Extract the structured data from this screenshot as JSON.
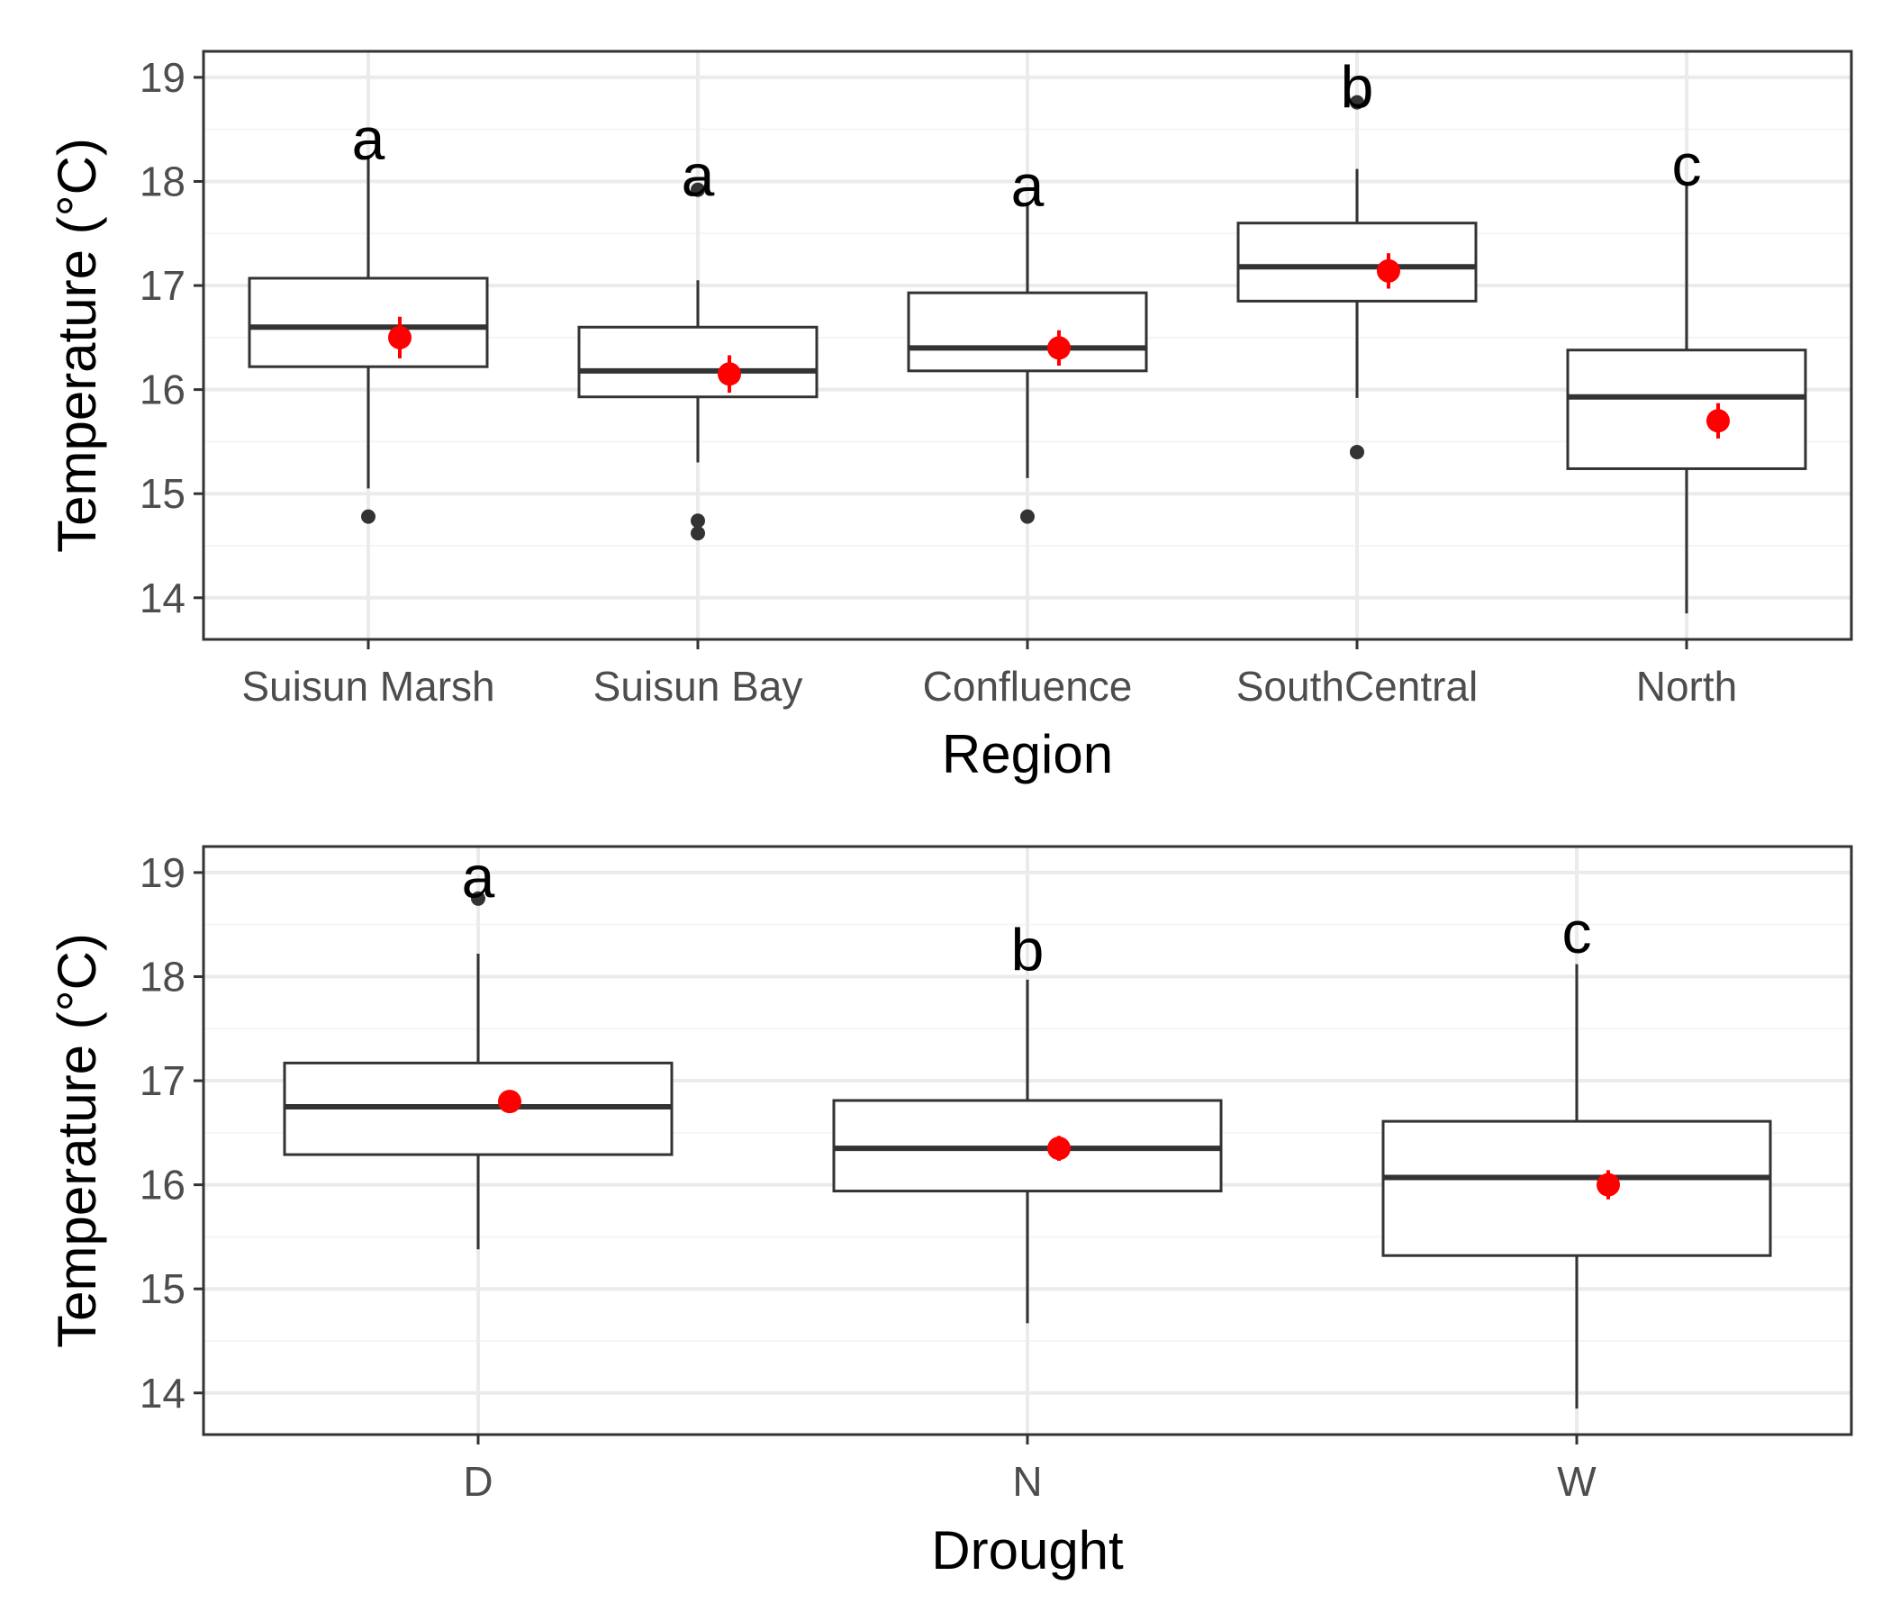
{
  "colors": {
    "background": "#ffffff",
    "panel_border": "#333333",
    "grid_major": "#ebebeb",
    "grid_minor": "#f5f5f5",
    "box": "#333333",
    "mean_point": "#ff0000",
    "outlier": "#333333",
    "tick_text": "#4d4d4d",
    "title_text": "#000000"
  },
  "chart_data": [
    {
      "type": "box",
      "xlabel": "Region",
      "ylabel": "Temperature (°C)",
      "ylim": [
        13.6,
        19.25
      ],
      "yticks": [
        14,
        15,
        16,
        17,
        18,
        19
      ],
      "grid": true,
      "categories": [
        "Suisun Marsh",
        "Suisun Bay",
        "Confluence",
        "SouthCentral",
        "North"
      ],
      "boxes": [
        {
          "whisker_low": 15.05,
          "q1": 16.22,
          "median": 16.6,
          "q3": 17.07,
          "whisker_high": 18.25,
          "outliers": [
            14.78
          ],
          "mean": 16.5,
          "mean_err": 0.2,
          "letter": "a",
          "letter_y": 18.4
        },
        {
          "whisker_low": 15.3,
          "q1": 15.93,
          "median": 16.18,
          "q3": 16.6,
          "whisker_high": 17.05,
          "outliers": [
            17.92,
            14.74,
            14.62
          ],
          "mean": 16.15,
          "mean_err": 0.18,
          "letter": "a",
          "letter_y": 18.05
        },
        {
          "whisker_low": 15.15,
          "q1": 16.18,
          "median": 16.4,
          "q3": 16.93,
          "whisker_high": 17.8,
          "outliers": [
            14.78
          ],
          "mean": 16.4,
          "mean_err": 0.17,
          "letter": "a",
          "letter_y": 17.95
        },
        {
          "whisker_low": 15.92,
          "q1": 16.85,
          "median": 17.18,
          "q3": 17.6,
          "whisker_high": 18.12,
          "outliers": [
            18.76,
            15.4
          ],
          "mean": 17.14,
          "mean_err": 0.17,
          "letter": "b",
          "letter_y": 18.9
        },
        {
          "whisker_low": 13.85,
          "q1": 15.24,
          "median": 15.93,
          "q3": 16.38,
          "whisker_high": 17.98,
          "outliers": [],
          "mean": 15.7,
          "mean_err": 0.17,
          "letter": "c",
          "letter_y": 18.15
        }
      ]
    },
    {
      "type": "box",
      "xlabel": "Drought",
      "ylabel": "Temperature (°C)",
      "ylim": [
        13.6,
        19.25
      ],
      "yticks": [
        14,
        15,
        16,
        17,
        18,
        19
      ],
      "grid": true,
      "categories": [
        "D",
        "N",
        "W"
      ],
      "boxes": [
        {
          "whisker_low": 15.38,
          "q1": 16.29,
          "median": 16.75,
          "q3": 17.17,
          "whisker_high": 18.22,
          "outliers": [
            18.75
          ],
          "mean": 16.8,
          "mean_err": 0.09,
          "letter": "a",
          "letter_y": 18.95
        },
        {
          "whisker_low": 14.67,
          "q1": 15.94,
          "median": 16.35,
          "q3": 16.81,
          "whisker_high": 17.97,
          "outliers": [],
          "mean": 16.35,
          "mean_err": 0.12,
          "letter": "b",
          "letter_y": 18.25
        },
        {
          "whisker_low": 13.85,
          "q1": 15.32,
          "median": 16.07,
          "q3": 16.61,
          "whisker_high": 18.12,
          "outliers": [],
          "mean": 16.0,
          "mean_err": 0.14,
          "letter": "c",
          "letter_y": 18.42
        }
      ]
    }
  ]
}
